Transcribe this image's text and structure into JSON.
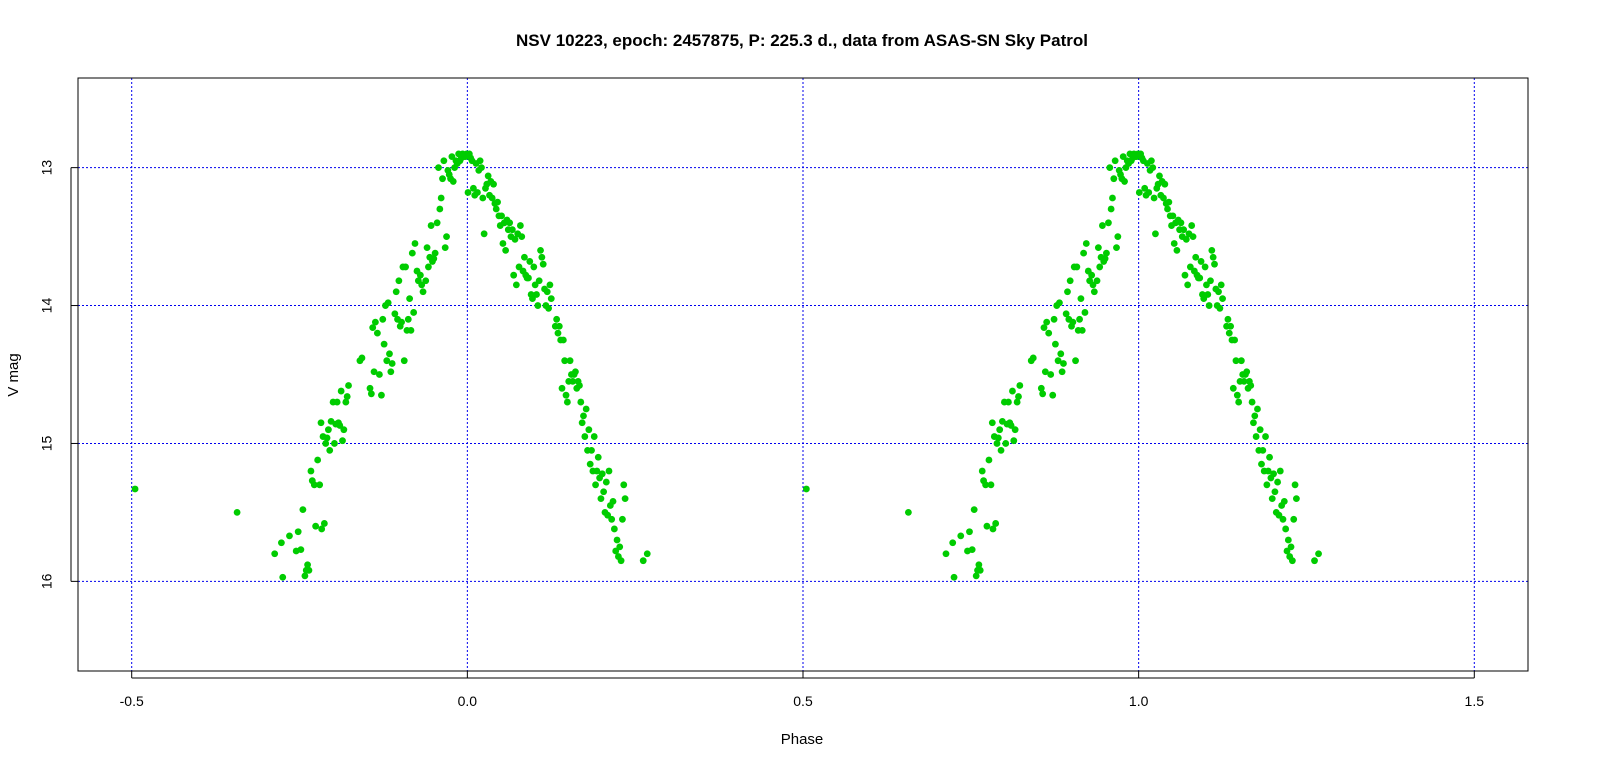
{
  "chart_data": {
    "type": "scatter",
    "title": "NSV 10223, epoch: 2457875, P: 225.3 d., data from ASAS-SN Sky Patrol",
    "xlabel": "Phase",
    "ylabel": "V mag",
    "xlim": [
      -0.58,
      1.58
    ],
    "ylim": [
      16.65,
      12.35
    ],
    "y_inverted": true,
    "x_ticks": [
      -0.5,
      0.0,
      0.5,
      1.0,
      1.5
    ],
    "x_tick_labels": [
      "-0.5",
      "0.0",
      "0.5",
      "1.0",
      "1.5"
    ],
    "y_ticks": [
      13,
      14,
      15,
      16
    ],
    "y_tick_labels": [
      "13",
      "14",
      "15",
      "16"
    ],
    "grid": true,
    "grid_color": "#0000ee",
    "point_color": "#00cc00",
    "phase_repeat_offset": 1.0,
    "series": [
      {
        "points": [
          [
            -0.495,
            15.33
          ],
          [
            -0.343,
            15.5
          ],
          [
            -0.287,
            15.8
          ],
          [
            -0.277,
            15.72
          ],
          [
            -0.275,
            15.97
          ],
          [
            -0.265,
            15.67
          ],
          [
            -0.255,
            15.78
          ],
          [
            -0.252,
            15.64
          ],
          [
            -0.248,
            15.77
          ],
          [
            -0.245,
            15.48
          ],
          [
            -0.242,
            15.96
          ],
          [
            -0.24,
            15.92
          ],
          [
            -0.238,
            15.88
          ],
          [
            -0.236,
            15.92
          ],
          [
            -0.233,
            15.2
          ],
          [
            -0.231,
            15.27
          ],
          [
            -0.228,
            15.3
          ],
          [
            -0.226,
            15.6
          ],
          [
            -0.223,
            15.12
          ],
          [
            -0.22,
            15.3
          ],
          [
            -0.218,
            14.85
          ],
          [
            -0.217,
            15.62
          ],
          [
            -0.215,
            14.95
          ],
          [
            -0.213,
            15.58
          ],
          [
            -0.211,
            15.0
          ],
          [
            -0.209,
            14.96
          ],
          [
            -0.207,
            14.9
          ],
          [
            -0.205,
            15.05
          ],
          [
            -0.203,
            14.84
          ],
          [
            -0.2,
            14.7
          ],
          [
            -0.198,
            15.0
          ],
          [
            -0.196,
            14.86
          ],
          [
            -0.194,
            14.7
          ],
          [
            -0.192,
            14.85
          ],
          [
            -0.19,
            14.87
          ],
          [
            -0.188,
            14.62
          ],
          [
            -0.186,
            14.98
          ],
          [
            -0.184,
            14.9
          ],
          [
            -0.181,
            14.7
          ],
          [
            -0.179,
            14.66
          ],
          [
            -0.177,
            14.58
          ],
          [
            -0.16,
            14.4
          ],
          [
            -0.157,
            14.38
          ],
          [
            -0.145,
            14.6
          ],
          [
            -0.143,
            14.64
          ],
          [
            -0.141,
            14.16
          ],
          [
            -0.139,
            14.48
          ],
          [
            -0.137,
            14.12
          ],
          [
            -0.134,
            14.2
          ],
          [
            -0.131,
            14.5
          ],
          [
            -0.128,
            14.65
          ],
          [
            -0.126,
            14.1
          ],
          [
            -0.124,
            14.28
          ],
          [
            -0.122,
            14.0
          ],
          [
            -0.12,
            14.4
          ],
          [
            -0.118,
            13.98
          ],
          [
            -0.116,
            14.35
          ],
          [
            -0.114,
            14.48
          ],
          [
            -0.112,
            14.42
          ],
          [
            -0.108,
            14.06
          ],
          [
            -0.106,
            13.9
          ],
          [
            -0.104,
            14.1
          ],
          [
            -0.102,
            13.82
          ],
          [
            -0.1,
            14.15
          ],
          [
            -0.098,
            14.12
          ],
          [
            -0.096,
            13.72
          ],
          [
            -0.094,
            14.4
          ],
          [
            -0.092,
            13.72
          ],
          [
            -0.09,
            14.18
          ],
          [
            -0.088,
            14.1
          ],
          [
            -0.086,
            13.95
          ],
          [
            -0.084,
            14.18
          ],
          [
            -0.082,
            13.62
          ],
          [
            -0.08,
            14.05
          ],
          [
            -0.078,
            13.55
          ],
          [
            -0.075,
            13.75
          ],
          [
            -0.073,
            13.82
          ],
          [
            -0.07,
            13.78
          ],
          [
            -0.068,
            13.85
          ],
          [
            -0.066,
            13.9
          ],
          [
            -0.062,
            13.82
          ],
          [
            -0.06,
            13.58
          ],
          [
            -0.058,
            13.72
          ],
          [
            -0.056,
            13.65
          ],
          [
            -0.054,
            13.42
          ],
          [
            -0.052,
            13.68
          ],
          [
            -0.05,
            13.66
          ],
          [
            -0.048,
            13.62
          ],
          [
            -0.045,
            13.4
          ],
          [
            -0.043,
            13.0
          ],
          [
            -0.041,
            13.3
          ],
          [
            -0.039,
            13.22
          ],
          [
            -0.037,
            13.08
          ],
          [
            -0.035,
            12.95
          ],
          [
            -0.033,
            13.58
          ],
          [
            -0.031,
            13.5
          ],
          [
            -0.029,
            13.02
          ],
          [
            -0.027,
            13.05
          ],
          [
            -0.025,
            13.08
          ],
          [
            -0.023,
            12.92
          ],
          [
            -0.021,
            13.1
          ],
          [
            -0.019,
            13.0
          ],
          [
            -0.017,
            12.95
          ],
          [
            -0.015,
            12.97
          ],
          [
            -0.013,
            12.9
          ],
          [
            -0.011,
            12.95
          ],
          [
            -0.009,
            12.93
          ],
          [
            -0.007,
            12.9
          ],
          [
            -0.005,
            12.92
          ],
          [
            -0.003,
            12.92
          ],
          [
            -0.001,
            12.9
          ],
          [
            0.001,
            13.18
          ],
          [
            0.003,
            12.9
          ],
          [
            0.005,
            12.93
          ],
          [
            0.007,
            12.95
          ],
          [
            0.009,
            13.15
          ],
          [
            0.011,
            13.2
          ],
          [
            0.013,
            12.97
          ],
          [
            0.015,
            13.18
          ],
          [
            0.017,
            13.02
          ],
          [
            0.019,
            12.95
          ],
          [
            0.021,
            13.0
          ],
          [
            0.023,
            13.22
          ],
          [
            0.025,
            13.48
          ],
          [
            0.027,
            13.15
          ],
          [
            0.029,
            13.12
          ],
          [
            0.031,
            13.06
          ],
          [
            0.033,
            13.2
          ],
          [
            0.035,
            13.1
          ],
          [
            0.037,
            13.22
          ],
          [
            0.039,
            13.12
          ],
          [
            0.041,
            13.26
          ],
          [
            0.043,
            13.3
          ],
          [
            0.045,
            13.25
          ],
          [
            0.047,
            13.35
          ],
          [
            0.049,
            13.42
          ],
          [
            0.051,
            13.35
          ],
          [
            0.053,
            13.55
          ],
          [
            0.055,
            13.4
          ],
          [
            0.057,
            13.6
          ],
          [
            0.059,
            13.38
          ],
          [
            0.061,
            13.45
          ],
          [
            0.063,
            13.4
          ],
          [
            0.065,
            13.5
          ],
          [
            0.067,
            13.45
          ],
          [
            0.069,
            13.78
          ],
          [
            0.071,
            13.52
          ],
          [
            0.073,
            13.85
          ],
          [
            0.075,
            13.48
          ],
          [
            0.077,
            13.72
          ],
          [
            0.079,
            13.42
          ],
          [
            0.081,
            13.5
          ],
          [
            0.083,
            13.75
          ],
          [
            0.085,
            13.65
          ],
          [
            0.087,
            13.78
          ],
          [
            0.089,
            13.8
          ],
          [
            0.091,
            13.8
          ],
          [
            0.093,
            13.68
          ],
          [
            0.095,
            13.92
          ],
          [
            0.097,
            13.95
          ],
          [
            0.099,
            13.72
          ],
          [
            0.101,
            13.85
          ],
          [
            0.103,
            13.92
          ],
          [
            0.105,
            14.0
          ],
          [
            0.107,
            13.82
          ],
          [
            0.109,
            13.6
          ],
          [
            0.111,
            13.65
          ],
          [
            0.113,
            13.7
          ],
          [
            0.115,
            13.88
          ],
          [
            0.117,
            14.0
          ],
          [
            0.119,
            13.9
          ],
          [
            0.121,
            14.02
          ],
          [
            0.123,
            13.85
          ],
          [
            0.125,
            13.95
          ],
          [
            0.131,
            14.15
          ],
          [
            0.133,
            14.1
          ],
          [
            0.135,
            14.2
          ],
          [
            0.137,
            14.15
          ],
          [
            0.139,
            14.25
          ],
          [
            0.141,
            14.6
          ],
          [
            0.143,
            14.25
          ],
          [
            0.145,
            14.4
          ],
          [
            0.147,
            14.65
          ],
          [
            0.149,
            14.7
          ],
          [
            0.151,
            14.55
          ],
          [
            0.153,
            14.4
          ],
          [
            0.155,
            14.5
          ],
          [
            0.157,
            14.55
          ],
          [
            0.159,
            14.5
          ],
          [
            0.161,
            14.48
          ],
          [
            0.163,
            14.6
          ],
          [
            0.165,
            14.55
          ],
          [
            0.167,
            14.58
          ],
          [
            0.169,
            14.7
          ],
          [
            0.171,
            14.85
          ],
          [
            0.173,
            14.8
          ],
          [
            0.175,
            14.95
          ],
          [
            0.177,
            14.75
          ],
          [
            0.179,
            15.05
          ],
          [
            0.181,
            14.9
          ],
          [
            0.183,
            15.15
          ],
          [
            0.185,
            15.05
          ],
          [
            0.187,
            15.2
          ],
          [
            0.189,
            14.95
          ],
          [
            0.191,
            15.3
          ],
          [
            0.193,
            15.2
          ],
          [
            0.195,
            15.1
          ],
          [
            0.197,
            15.25
          ],
          [
            0.199,
            15.4
          ],
          [
            0.201,
            15.22
          ],
          [
            0.203,
            15.35
          ],
          [
            0.205,
            15.5
          ],
          [
            0.207,
            15.28
          ],
          [
            0.209,
            15.52
          ],
          [
            0.211,
            15.2
          ],
          [
            0.213,
            15.45
          ],
          [
            0.215,
            15.55
          ],
          [
            0.217,
            15.42
          ],
          [
            0.219,
            15.62
          ],
          [
            0.221,
            15.78
          ],
          [
            0.223,
            15.7
          ],
          [
            0.225,
            15.82
          ],
          [
            0.227,
            15.75
          ],
          [
            0.229,
            15.85
          ],
          [
            0.231,
            15.55
          ],
          [
            0.233,
            15.3
          ],
          [
            0.235,
            15.4
          ],
          [
            0.262,
            15.85
          ],
          [
            0.268,
            15.8
          ]
        ]
      }
    ]
  }
}
